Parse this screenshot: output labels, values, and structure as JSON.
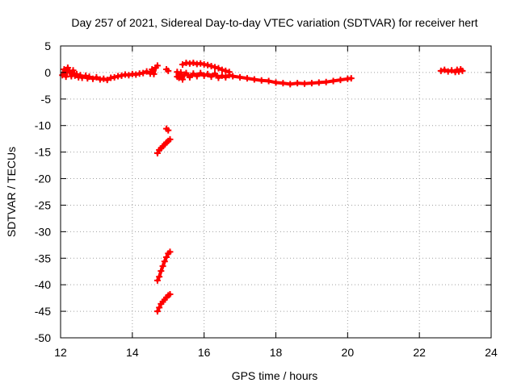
{
  "chart_data": {
    "type": "scatter",
    "title": "Day 257 of 2021, Sidereal Day-to-day VTEC variation (SDTVAR) for receiver hert",
    "xlabel": "GPS time / hours",
    "ylabel": "SDTVAR / TECUs",
    "xlim": [
      12,
      24
    ],
    "ylim": [
      -50,
      5
    ],
    "xticks": [
      12,
      14,
      16,
      18,
      20,
      22,
      24
    ],
    "yticks": [
      5,
      0,
      -5,
      -10,
      -15,
      -20,
      -25,
      -30,
      -35,
      -40,
      -45,
      -50
    ],
    "grid": true,
    "marker_color": "#ff0000",
    "series": [
      {
        "points": [
          [
            12.05,
            -0.5
          ],
          [
            12.1,
            0.6
          ],
          [
            12.15,
            -0.8
          ],
          [
            12.2,
            0.9
          ],
          [
            12.25,
            0.2
          ],
          [
            12.3,
            -0.7
          ],
          [
            12.35,
            0.4
          ],
          [
            12.4,
            -0.6
          ],
          [
            12.45,
            -0.3
          ],
          [
            12.5,
            -0.9
          ],
          [
            12.55,
            -0.5
          ],
          [
            12.6,
            -1.0
          ],
          [
            12.7,
            -0.6
          ],
          [
            12.75,
            -1.1
          ],
          [
            12.8,
            -0.8
          ],
          [
            12.9,
            -1.2
          ],
          [
            13.0,
            -0.9
          ],
          [
            13.1,
            -1.3
          ],
          [
            13.2,
            -1.2
          ],
          [
            13.3,
            -1.4
          ],
          [
            13.4,
            -1.0
          ],
          [
            13.5,
            -0.9
          ],
          [
            13.6,
            -0.7
          ],
          [
            13.7,
            -0.6
          ],
          [
            13.8,
            -0.4
          ],
          [
            13.9,
            -0.5
          ],
          [
            14.0,
            -0.3
          ],
          [
            14.1,
            -0.4
          ],
          [
            14.2,
            -0.2
          ],
          [
            14.3,
            -0.1
          ],
          [
            14.4,
            0.2
          ],
          [
            14.5,
            -0.2
          ],
          [
            14.55,
            0.6
          ],
          [
            14.6,
            -0.3
          ],
          [
            14.65,
            0.9
          ],
          [
            14.7,
            1.3
          ]
        ]
      },
      {
        "points": [
          [
            14.95,
            0.6
          ],
          [
            15.0,
            0.3
          ]
        ]
      },
      {
        "points": [
          [
            15.25,
            -0.8
          ],
          [
            15.25,
            0.1
          ],
          [
            15.3,
            -1.0
          ],
          [
            15.35,
            0.0
          ],
          [
            15.4,
            -1.3
          ],
          [
            15.45,
            -0.4
          ],
          [
            15.5,
            -0.1
          ],
          [
            15.6,
            -0.9
          ],
          [
            15.7,
            -0.2
          ],
          [
            15.8,
            -0.7
          ],
          [
            15.9,
            -0.1
          ],
          [
            16.0,
            -0.6
          ],
          [
            16.1,
            -0.3
          ],
          [
            16.2,
            -0.8
          ],
          [
            16.3,
            -0.2
          ],
          [
            16.4,
            -1.0
          ],
          [
            16.5,
            -0.6
          ],
          [
            16.6,
            -0.9
          ],
          [
            16.7,
            -0.5
          ],
          [
            16.8,
            -0.7
          ],
          [
            17.0,
            -0.9
          ],
          [
            17.2,
            -1.1
          ],
          [
            17.4,
            -1.3
          ],
          [
            17.6,
            -1.5
          ],
          [
            17.8,
            -1.6
          ],
          [
            18.0,
            -1.9
          ],
          [
            18.2,
            -2.0
          ],
          [
            18.4,
            -2.2
          ],
          [
            18.6,
            -2.0
          ],
          [
            18.8,
            -2.1
          ],
          [
            19.0,
            -2.0
          ],
          [
            19.2,
            -1.9
          ],
          [
            19.4,
            -1.8
          ],
          [
            19.6,
            -1.6
          ],
          [
            19.8,
            -1.4
          ],
          [
            20.0,
            -1.2
          ],
          [
            20.1,
            -1.1
          ]
        ]
      },
      {
        "points": [
          [
            15.4,
            1.5
          ],
          [
            15.5,
            1.8
          ],
          [
            15.6,
            1.7
          ],
          [
            15.7,
            1.8
          ],
          [
            15.8,
            1.6
          ],
          [
            15.9,
            1.7
          ],
          [
            16.0,
            1.5
          ],
          [
            16.1,
            1.4
          ],
          [
            16.2,
            1.2
          ],
          [
            16.3,
            1.0
          ],
          [
            16.4,
            0.8
          ],
          [
            16.5,
            0.5
          ],
          [
            16.6,
            0.3
          ],
          [
            16.7,
            0.1
          ]
        ]
      },
      {
        "points": [
          [
            14.95,
            -10.6
          ],
          [
            15.0,
            -10.9
          ]
        ]
      },
      {
        "points": [
          [
            14.7,
            -15.2
          ],
          [
            14.75,
            -14.6
          ],
          [
            14.8,
            -14.3
          ],
          [
            14.85,
            -13.9
          ],
          [
            14.9,
            -13.6
          ],
          [
            14.95,
            -13.2
          ],
          [
            15.0,
            -12.9
          ],
          [
            15.05,
            -12.6
          ]
        ]
      },
      {
        "points": [
          [
            14.7,
            -39.2
          ],
          [
            14.75,
            -38.5
          ],
          [
            14.8,
            -37.4
          ],
          [
            14.85,
            -36.5
          ],
          [
            14.9,
            -35.6
          ],
          [
            14.95,
            -34.8
          ],
          [
            15.0,
            -34.1
          ],
          [
            15.05,
            -33.8
          ]
        ]
      },
      {
        "points": [
          [
            14.7,
            -45.0
          ],
          [
            14.75,
            -44.3
          ],
          [
            14.8,
            -43.6
          ],
          [
            14.85,
            -43.2
          ],
          [
            14.9,
            -42.8
          ],
          [
            14.95,
            -42.4
          ],
          [
            15.0,
            -42.0
          ],
          [
            15.05,
            -41.8
          ]
        ]
      },
      {
        "points": [
          [
            22.6,
            0.3
          ],
          [
            22.7,
            0.5
          ],
          [
            22.8,
            0.2
          ],
          [
            22.9,
            0.4
          ],
          [
            23.0,
            0.1
          ],
          [
            23.05,
            0.5
          ],
          [
            23.1,
            0.2
          ],
          [
            23.15,
            0.6
          ],
          [
            23.2,
            0.3
          ]
        ]
      }
    ]
  }
}
